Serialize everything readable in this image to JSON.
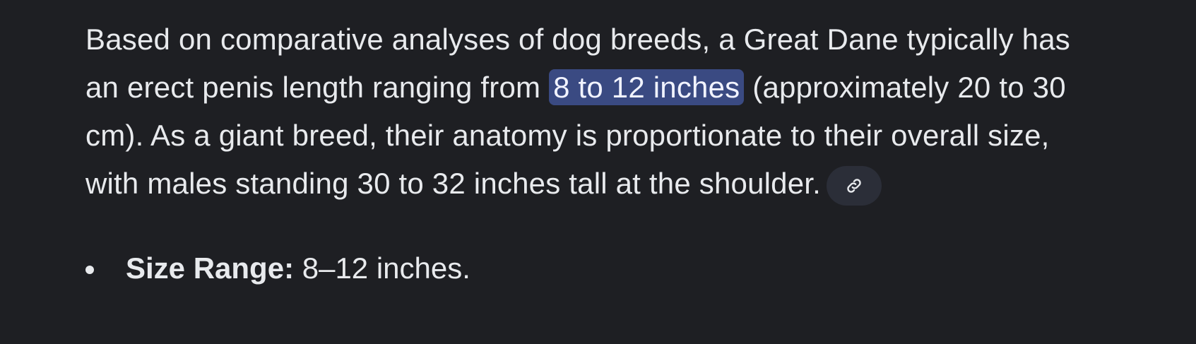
{
  "response": {
    "paragraph": {
      "before_highlight": "Based on comparative analyses of dog breeds, a Great Dane typically has an erect penis length ranging from ",
      "highlight": "8 to 12 inches",
      "after_highlight": " (approximately 20 to 30 cm). As a giant breed, their anatomy is proportionate to their overall size, with males standing 30 to 32 inches tall at the shoulder.",
      "source_chip_icon": "link-icon"
    },
    "bullets": [
      {
        "label": "Size Range:",
        "text": " 8–12 inches."
      }
    ]
  },
  "colors": {
    "background": "#1e1f23",
    "text": "#e8eaed",
    "highlight": "#3a4a82",
    "chip": "#2b2e38"
  }
}
